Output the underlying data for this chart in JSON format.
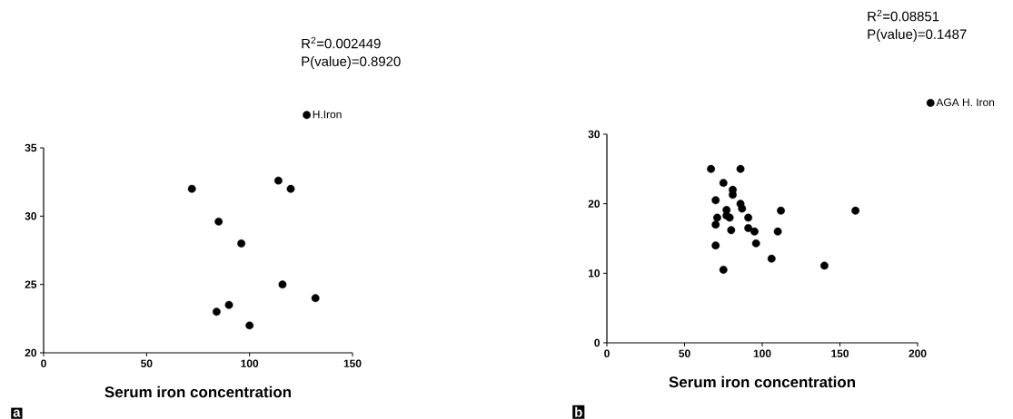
{
  "chart_data": [
    {
      "type": "scatter",
      "xlabel": "Serum iron concentration",
      "xlim": [
        0,
        150
      ],
      "xticks": [
        0,
        50,
        100,
        150
      ],
      "ylim": [
        20,
        35
      ],
      "yticks": [
        20,
        25,
        30,
        35
      ],
      "marker": "circle",
      "legend": "top right",
      "annotations": [
        "R$^{2}$=0.002449",
        "P(value)=0.8920",
        "a"
      ],
      "series": [
        {
          "name": "H.Iron",
          "color": "#000000",
          "x": [
            72,
            114,
            120,
            85,
            96,
            116,
            132,
            90,
            84,
            100
          ],
          "values": [
            32,
            32.6,
            32,
            29.6,
            28,
            25,
            24,
            23.5,
            23,
            22
          ]
        }
      ]
    },
    {
      "type": "scatter",
      "xlabel": "Serum iron concentration",
      "xlim": [
        0,
        200
      ],
      "xticks": [
        0,
        50,
        100,
        150,
        200
      ],
      "ylim": [
        0,
        30
      ],
      "yticks": [
        0,
        10,
        20,
        30
      ],
      "marker": "circle",
      "legend": "top right",
      "annotations": [
        "R$^{2}$=0.08851",
        "P(value)=0.1487",
        "b"
      ],
      "series": [
        {
          "name": "AGA H. Iron",
          "color": "#000000",
          "x": [
            67,
            86,
            75,
            81,
            81,
            70,
            86,
            87,
            112,
            160,
            77,
            77,
            71,
            79,
            91,
            70,
            91,
            80,
            95,
            110,
            96,
            70,
            106,
            140,
            75
          ],
          "values": [
            25,
            25,
            23,
            22,
            21.3,
            20.5,
            20,
            19.3,
            19,
            19,
            19.1,
            18.3,
            18,
            18,
            18,
            17,
            16.5,
            16.2,
            16,
            16,
            14.3,
            14,
            12.1,
            11.1,
            10.5
          ]
        }
      ]
    }
  ]
}
